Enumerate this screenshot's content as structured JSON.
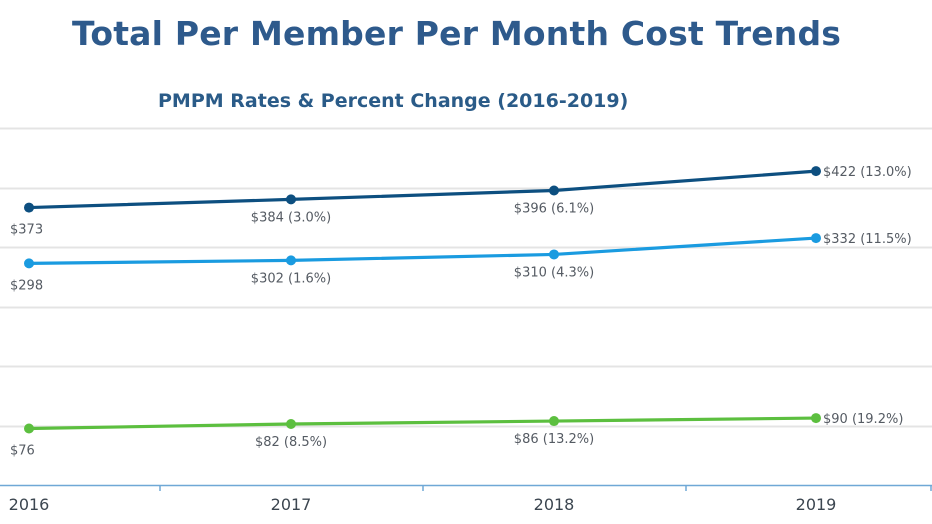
{
  "page": {
    "title": "Total Per Member Per Month Cost Trends"
  },
  "chart_data": {
    "type": "line",
    "title": "PMPM Rates & Percent Change (2016-2019)",
    "x": [
      "2016",
      "2017",
      "2018",
      "2019"
    ],
    "xlabel": "",
    "ylabel": "",
    "ylim": [
      0,
      480
    ],
    "grid": true,
    "legend": "none",
    "series": [
      {
        "color": "#0d4f80",
        "values": [
          373,
          384,
          396,
          422
        ],
        "labels": [
          "$373",
          "$384 (3.0%)",
          "$396 (6.1%)",
          "$422 (13.0%)"
        ]
      },
      {
        "color": "#1a9be0",
        "values": [
          298,
          302,
          310,
          332
        ],
        "labels": [
          "$298",
          "$302 (1.6%)",
          "$310 (4.3%)",
          "$332 (11.5%)"
        ]
      },
      {
        "color": "#5cbf3f",
        "values": [
          76,
          82,
          86,
          90
        ],
        "labels": [
          "$76",
          "$82 (8.5%)",
          "$86 (13.2%)",
          "$90 (19.2%)"
        ]
      }
    ]
  }
}
